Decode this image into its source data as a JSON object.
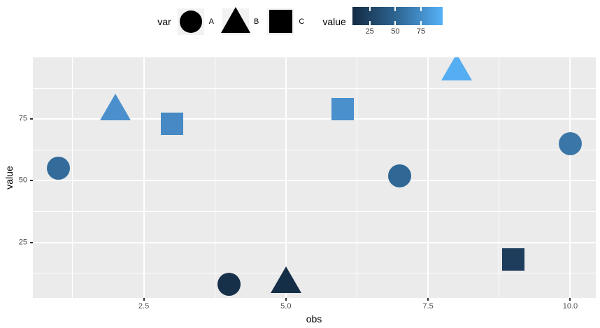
{
  "legend": {
    "shape_legend": {
      "title": "var",
      "glyph_color": "#000000",
      "key_background": "#f2f2f2",
      "items": [
        {
          "label": "A",
          "shape": "circle"
        },
        {
          "label": "B",
          "shape": "triangle"
        },
        {
          "label": "C",
          "shape": "square"
        }
      ]
    },
    "color_legend": {
      "title": "value",
      "range": [
        8,
        96
      ],
      "ticks": [
        {
          "v": 25,
          "label": "25"
        },
        {
          "v": 50,
          "label": "50"
        },
        {
          "v": 75,
          "label": "75"
        }
      ],
      "gradient_stops": [
        "#132b43",
        "#2f6795",
        "#56b1f7"
      ]
    }
  },
  "chart_data": {
    "type": "scatter",
    "title": "",
    "xlabel": "obs",
    "ylabel": "value",
    "xlim": [
      0.55,
      10.45
    ],
    "ylim": [
      2.5,
      100
    ],
    "grid": true,
    "panel_background": "#ebebeb",
    "grid_color": "#ffffff",
    "legend_position": "top",
    "x_major_ticks": [
      {
        "v": 2.5,
        "label": "2.5"
      },
      {
        "v": 5.0,
        "label": "5.0"
      },
      {
        "v": 7.5,
        "label": "7.5"
      },
      {
        "v": 10.0,
        "label": "10.0"
      }
    ],
    "x_minor": [
      1.25,
      3.75,
      6.25,
      8.75
    ],
    "y_major_ticks": [
      {
        "v": 25,
        "label": "25"
      },
      {
        "v": 50,
        "label": "50"
      },
      {
        "v": 75,
        "label": "75"
      }
    ],
    "y_minor": [
      12.5,
      37.5,
      62.5,
      87.5
    ],
    "points": [
      {
        "obs": 1,
        "var": "A",
        "shape": "circle",
        "value": 55,
        "color": "#336b9b"
      },
      {
        "obs": 2,
        "var": "B",
        "shape": "triangle",
        "value": 80,
        "color": "#4b90cd"
      },
      {
        "obs": 3,
        "var": "C",
        "shape": "square",
        "value": 73,
        "color": "#4689c4"
      },
      {
        "obs": 4,
        "var": "A",
        "shape": "circle",
        "value": 8,
        "color": "#16304a"
      },
      {
        "obs": 5,
        "var": "B",
        "shape": "triangle",
        "value": 10,
        "color": "#152e47"
      },
      {
        "obs": 6,
        "var": "C",
        "shape": "square",
        "value": 79,
        "color": "#4a90cc"
      },
      {
        "obs": 7,
        "var": "A",
        "shape": "circle",
        "value": 52,
        "color": "#2f6795"
      },
      {
        "obs": 8,
        "var": "B",
        "shape": "triangle",
        "value": 96,
        "color": "#56aef2"
      },
      {
        "obs": 9,
        "var": "C",
        "shape": "square",
        "value": 18,
        "color": "#1e3c5c"
      },
      {
        "obs": 10,
        "var": "A",
        "shape": "circle",
        "value": 65,
        "color": "#3b76a8"
      }
    ]
  }
}
